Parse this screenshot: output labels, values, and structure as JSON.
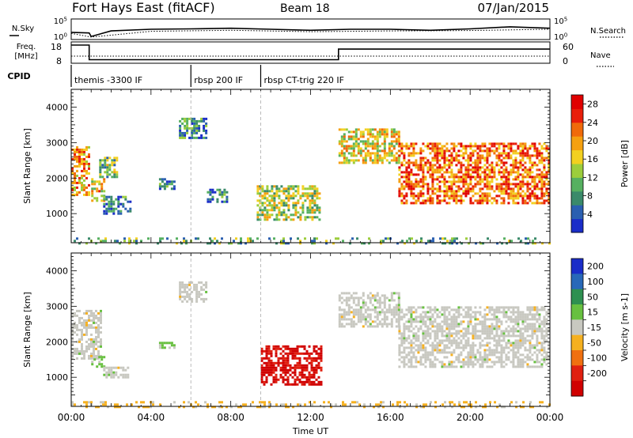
{
  "header": {
    "station": "Fort Hays East (fitACF)",
    "beam": "Beam 18",
    "date": "07/Jan/2015"
  },
  "top_panels": {
    "nsky_label": "N.Sky",
    "nsky_ticks": [
      "10^5",
      "10^0"
    ],
    "nsearch_label": "N.Search",
    "nsearch_ticks": [
      "10^5",
      "10^0"
    ],
    "freq_label": "Freq.",
    "freq_unit": "[MHz]",
    "freq_ticks": [
      "18",
      "8"
    ],
    "nave_label": "Nave",
    "nave_ticks": [
      "60",
      "0"
    ],
    "cpid_label": "CPID",
    "cpid_segments": [
      {
        "label": "themis -3300 IF",
        "start_h": 0.0,
        "end_h": 6.0
      },
      {
        "label": "rbsp 200 IF",
        "start_h": 6.0,
        "end_h": 9.5
      },
      {
        "label": "rbsp CT-trig 220 IF",
        "start_h": 9.5,
        "end_h": 24.0
      }
    ],
    "freq_series_mhz": [
      [
        0,
        18
      ],
      [
        0.9,
        18
      ],
      [
        0.9,
        9.6
      ],
      [
        13.4,
        9.6
      ],
      [
        13.4,
        15.7
      ],
      [
        24,
        15.7
      ]
    ],
    "nsky_series": [
      [
        0,
        0.35
      ],
      [
        0.9,
        0.32
      ],
      [
        1.0,
        0.15
      ],
      [
        2,
        0.42
      ],
      [
        4,
        0.5
      ],
      [
        6,
        0.52
      ],
      [
        8,
        0.55
      ],
      [
        10,
        0.5
      ],
      [
        12,
        0.45
      ],
      [
        14,
        0.5
      ],
      [
        16,
        0.5
      ],
      [
        18,
        0.45
      ],
      [
        20,
        0.52
      ],
      [
        22,
        0.62
      ],
      [
        24,
        0.55
      ]
    ],
    "nsearch_series": [
      [
        0,
        0.3
      ],
      [
        1,
        0.12
      ],
      [
        4,
        0.4
      ],
      [
        8,
        0.45
      ],
      [
        12,
        0.38
      ],
      [
        16,
        0.42
      ],
      [
        20,
        0.44
      ],
      [
        24,
        0.5
      ]
    ]
  },
  "chart_data": [
    {
      "type": "heatmap",
      "title": "Power",
      "ylabel": "Slant Range [km]",
      "xlabel": "Time UT",
      "xlim": [
        0,
        24
      ],
      "ylim": [
        180,
        4500
      ],
      "x_ticks": [
        "00:00",
        "04:00",
        "08:00",
        "12:00",
        "16:00",
        "20:00",
        "00:00"
      ],
      "y_ticks": [
        1000,
        2000,
        3000,
        4000
      ],
      "colorbar_label": "Power [dB]",
      "colorbar_ticks": [
        "4",
        "8",
        "12",
        "16",
        "20",
        "24",
        "28"
      ],
      "colorbar_range": [
        0,
        30
      ],
      "colorbar_colors": [
        "#1a2dc8",
        "#2a5fb0",
        "#3a8a6a",
        "#56b060",
        "#9ccd3c",
        "#f2d020",
        "#f5a010",
        "#f06a0a",
        "#e81e0a",
        "#e00000"
      ],
      "echo_regions": [
        {
          "t0": 0.0,
          "t1": 0.9,
          "r0": 1500,
          "r1": 2900,
          "power": 20
        },
        {
          "t0": 1.0,
          "t1": 1.7,
          "r0": 1350,
          "r1": 2000,
          "power": 18
        },
        {
          "t0": 1.4,
          "t1": 2.3,
          "r0": 2000,
          "r1": 2600,
          "power": 12
        },
        {
          "t0": 1.6,
          "t1": 3.0,
          "r0": 1000,
          "r1": 1500,
          "power": 6
        },
        {
          "t0": 5.4,
          "t1": 6.8,
          "r0": 3100,
          "r1": 3700,
          "power": 8
        },
        {
          "t0": 4.4,
          "t1": 5.2,
          "r0": 1700,
          "r1": 2000,
          "power": 6
        },
        {
          "t0": 6.8,
          "t1": 7.8,
          "r0": 1300,
          "r1": 1700,
          "power": 6
        },
        {
          "t0": 9.3,
          "t1": 12.5,
          "r0": 800,
          "r1": 1800,
          "power": 14
        },
        {
          "t0": 13.4,
          "t1": 16.4,
          "r0": 2400,
          "r1": 3400,
          "power": 16
        },
        {
          "t0": 16.4,
          "t1": 24.0,
          "r0": 1300,
          "r1": 3000,
          "power": 22
        },
        {
          "t0": 0.0,
          "t1": 24.0,
          "r0": 180,
          "r1": 330,
          "power": 10
        }
      ]
    },
    {
      "type": "heatmap",
      "title": "Velocity",
      "ylabel": "Slant Range [km]",
      "xlabel": "Time UT",
      "xlim": [
        0,
        24
      ],
      "ylim": [
        180,
        4500
      ],
      "x_ticks": [
        "00:00",
        "04:00",
        "08:00",
        "12:00",
        "16:00",
        "20:00",
        "00:00"
      ],
      "y_ticks": [
        1000,
        2000,
        3000,
        4000
      ],
      "colorbar_label": "Velocity [m s-1]",
      "colorbar_ticks": [
        "200",
        "100",
        "50",
        "15",
        "-15",
        "-50",
        "-100",
        "-200"
      ],
      "colorbar_range": [
        -250,
        250
      ],
      "colorbar_colors": [
        "#1a2dc8",
        "#2868b8",
        "#2e9050",
        "#68c040",
        "#c8c8c0",
        "#f5b020",
        "#f07010",
        "#e02010",
        "#d00000"
      ],
      "echo_regions": [
        {
          "t0": 0.0,
          "t1": 1.5,
          "r0": 1500,
          "r1": 2900,
          "velocity": 0
        },
        {
          "t0": 1.0,
          "t1": 1.7,
          "r0": 1300,
          "r1": 1600,
          "velocity": 40
        },
        {
          "t0": 1.6,
          "t1": 2.8,
          "r0": 1000,
          "r1": 1300,
          "velocity": 0
        },
        {
          "t0": 5.4,
          "t1": 6.8,
          "r0": 3100,
          "r1": 3700,
          "velocity": 0
        },
        {
          "t0": 4.4,
          "t1": 5.2,
          "r0": 1800,
          "r1": 2000,
          "velocity": 40
        },
        {
          "t0": 9.5,
          "t1": 12.5,
          "r0": 800,
          "r1": 1900,
          "velocity": -200
        },
        {
          "t0": 13.4,
          "t1": 16.4,
          "r0": 2400,
          "r1": 3400,
          "velocity": 0
        },
        {
          "t0": 16.4,
          "t1": 24.0,
          "r0": 1300,
          "r1": 3000,
          "velocity": 0
        },
        {
          "t0": 0.0,
          "t1": 24.0,
          "r0": 180,
          "r1": 330,
          "velocity": -40
        }
      ]
    }
  ]
}
